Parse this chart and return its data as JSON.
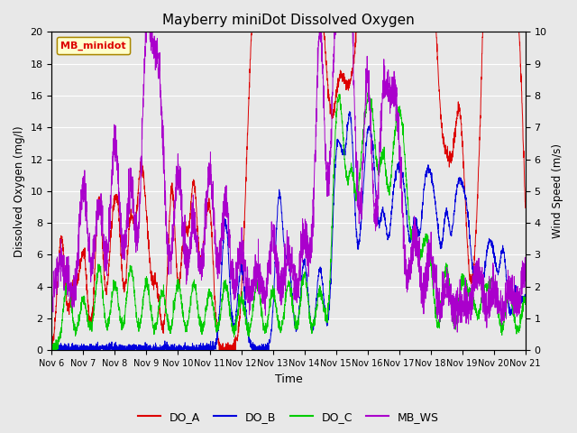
{
  "title": "Mayberry miniDot Dissolved Oxygen",
  "xlabel": "Time",
  "ylabel_left": "Dissolved Oxygen (mg/l)",
  "ylabel_right": "Wind Speed (m/s)",
  "ylim_left": [
    0,
    20
  ],
  "ylim_right": [
    0.0,
    10.0
  ],
  "x_start": 6,
  "x_end": 21,
  "x_ticks": [
    6,
    7,
    8,
    9,
    10,
    11,
    12,
    13,
    14,
    15,
    16,
    17,
    18,
    19,
    20,
    21
  ],
  "x_tick_labels": [
    "Nov 6",
    "Nov 7",
    "Nov 8",
    "Nov 9",
    "Nov 10",
    "Nov 11",
    "Nov 12",
    "Nov 13",
    "Nov 14",
    "Nov 15",
    "Nov 16",
    "Nov 17",
    "Nov 18",
    "Nov 19",
    "Nov 20",
    "Nov 21"
  ],
  "legend_label": "MB_minidot",
  "series_colors": {
    "DO_A": "#dd0000",
    "DO_B": "#0000dd",
    "DO_C": "#00cc00",
    "MB_WS": "#aa00cc"
  },
  "background_color": "#e8e8e8",
  "grid_color": "#ffffff",
  "seed": 42,
  "n_points": 3000
}
